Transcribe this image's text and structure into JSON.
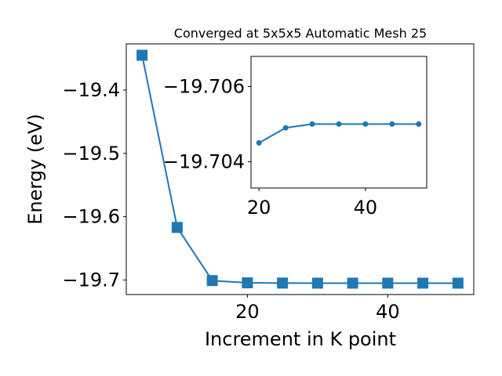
{
  "chart_data": [
    {
      "type": "line",
      "title": "Converged at 5x5x5 Automatic Mesh 25",
      "xlabel": "Increment in K point",
      "ylabel": "Energy (eV)",
      "x": [
        5,
        10,
        15,
        20,
        25,
        30,
        35,
        40,
        45,
        50
      ],
      "series": [
        {
          "values": [
            -19.345,
            -19.617,
            -19.701,
            -19.7045,
            -19.7049,
            -19.705,
            -19.705,
            -19.705,
            -19.705,
            -19.705
          ],
          "color": "#1f77b4",
          "marker": "square"
        }
      ],
      "xlim": [
        2.75,
        52.25
      ],
      "ylim": [
        -19.723,
        -19.327
      ],
      "xticks": [
        20,
        40
      ],
      "xtick_labels": [
        "20",
        "40"
      ],
      "yticks": [
        -19.4,
        -19.5,
        -19.6,
        -19.7
      ],
      "ytick_labels": [
        "−19.4",
        "−19.5",
        "−19.6",
        "−19.7"
      ],
      "grid": false
    },
    {
      "type": "line",
      "title": "",
      "xlabel": "",
      "ylabel": "",
      "x": [
        20,
        25,
        30,
        35,
        40,
        45,
        50
      ],
      "series": [
        {
          "values": [
            -19.7045,
            -19.7049,
            -19.705,
            -19.705,
            -19.705,
            -19.705,
            -19.705
          ],
          "color": "#1f77b4",
          "marker": "circle"
        }
      ],
      "ylim": [
        -19.7033,
        -19.7068
      ],
      "y_axis_inverted": true,
      "xlim": [
        18.5,
        51.5
      ],
      "xticks": [
        20,
        40
      ],
      "xtick_labels": [
        "20",
        "40"
      ],
      "yticks": [
        -19.706,
        -19.704
      ],
      "ytick_labels": [
        "−19.706",
        "−19.704"
      ],
      "grid": false
    }
  ]
}
